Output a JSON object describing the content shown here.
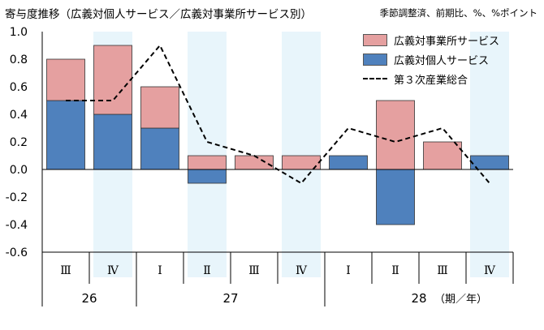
{
  "title": "寄与度推移（広義対個人サービス／広義対事業所サービス別）",
  "unit_note": "季節調整済、前期比、%、%ポイント",
  "colors": {
    "business": "#e5a0a0",
    "personal": "#4f81bd",
    "shade": "#e8f5fb",
    "line": "#000000"
  },
  "chart_data": {
    "type": "bar",
    "stacked": true,
    "categories": [
      "Ⅲ",
      "Ⅳ",
      "Ⅰ",
      "Ⅱ",
      "Ⅲ",
      "Ⅳ",
      "Ⅰ",
      "Ⅱ",
      "Ⅲ",
      "Ⅳ"
    ],
    "year_labels": [
      {
        "label": "26",
        "quarters": 2
      },
      {
        "label": "27",
        "quarters": 4
      },
      {
        "label": "28",
        "quarters": 4
      }
    ],
    "period_label": "（期／年）",
    "ylim": [
      -0.6,
      1.0
    ],
    "yticks": [
      "1.0",
      "0.8",
      "0.6",
      "0.4",
      "0.2",
      "0.0",
      "-0.2",
      "-0.4",
      "-0.6"
    ],
    "ytick_values": [
      1.0,
      0.8,
      0.6,
      0.4,
      0.2,
      0.0,
      -0.2,
      -0.4,
      -0.6
    ],
    "shaded_categories": [
      1,
      3,
      5,
      9
    ],
    "series": [
      {
        "name": "広義対事業所サービス",
        "kind": "bar",
        "values": [
          0.3,
          0.5,
          0.3,
          0.1,
          0.1,
          0.1,
          0.0,
          0.5,
          0.2,
          0.0
        ]
      },
      {
        "name": "広義対個人サービス",
        "kind": "bar",
        "values": [
          0.5,
          0.4,
          0.3,
          -0.1,
          0.0,
          0.0,
          0.1,
          -0.4,
          0.0,
          0.1
        ]
      },
      {
        "name": "第３次産業総合",
        "kind": "line",
        "values": [
          0.5,
          0.5,
          0.9,
          0.2,
          0.1,
          -0.1,
          0.3,
          0.2,
          0.3,
          -0.1
        ]
      }
    ]
  }
}
